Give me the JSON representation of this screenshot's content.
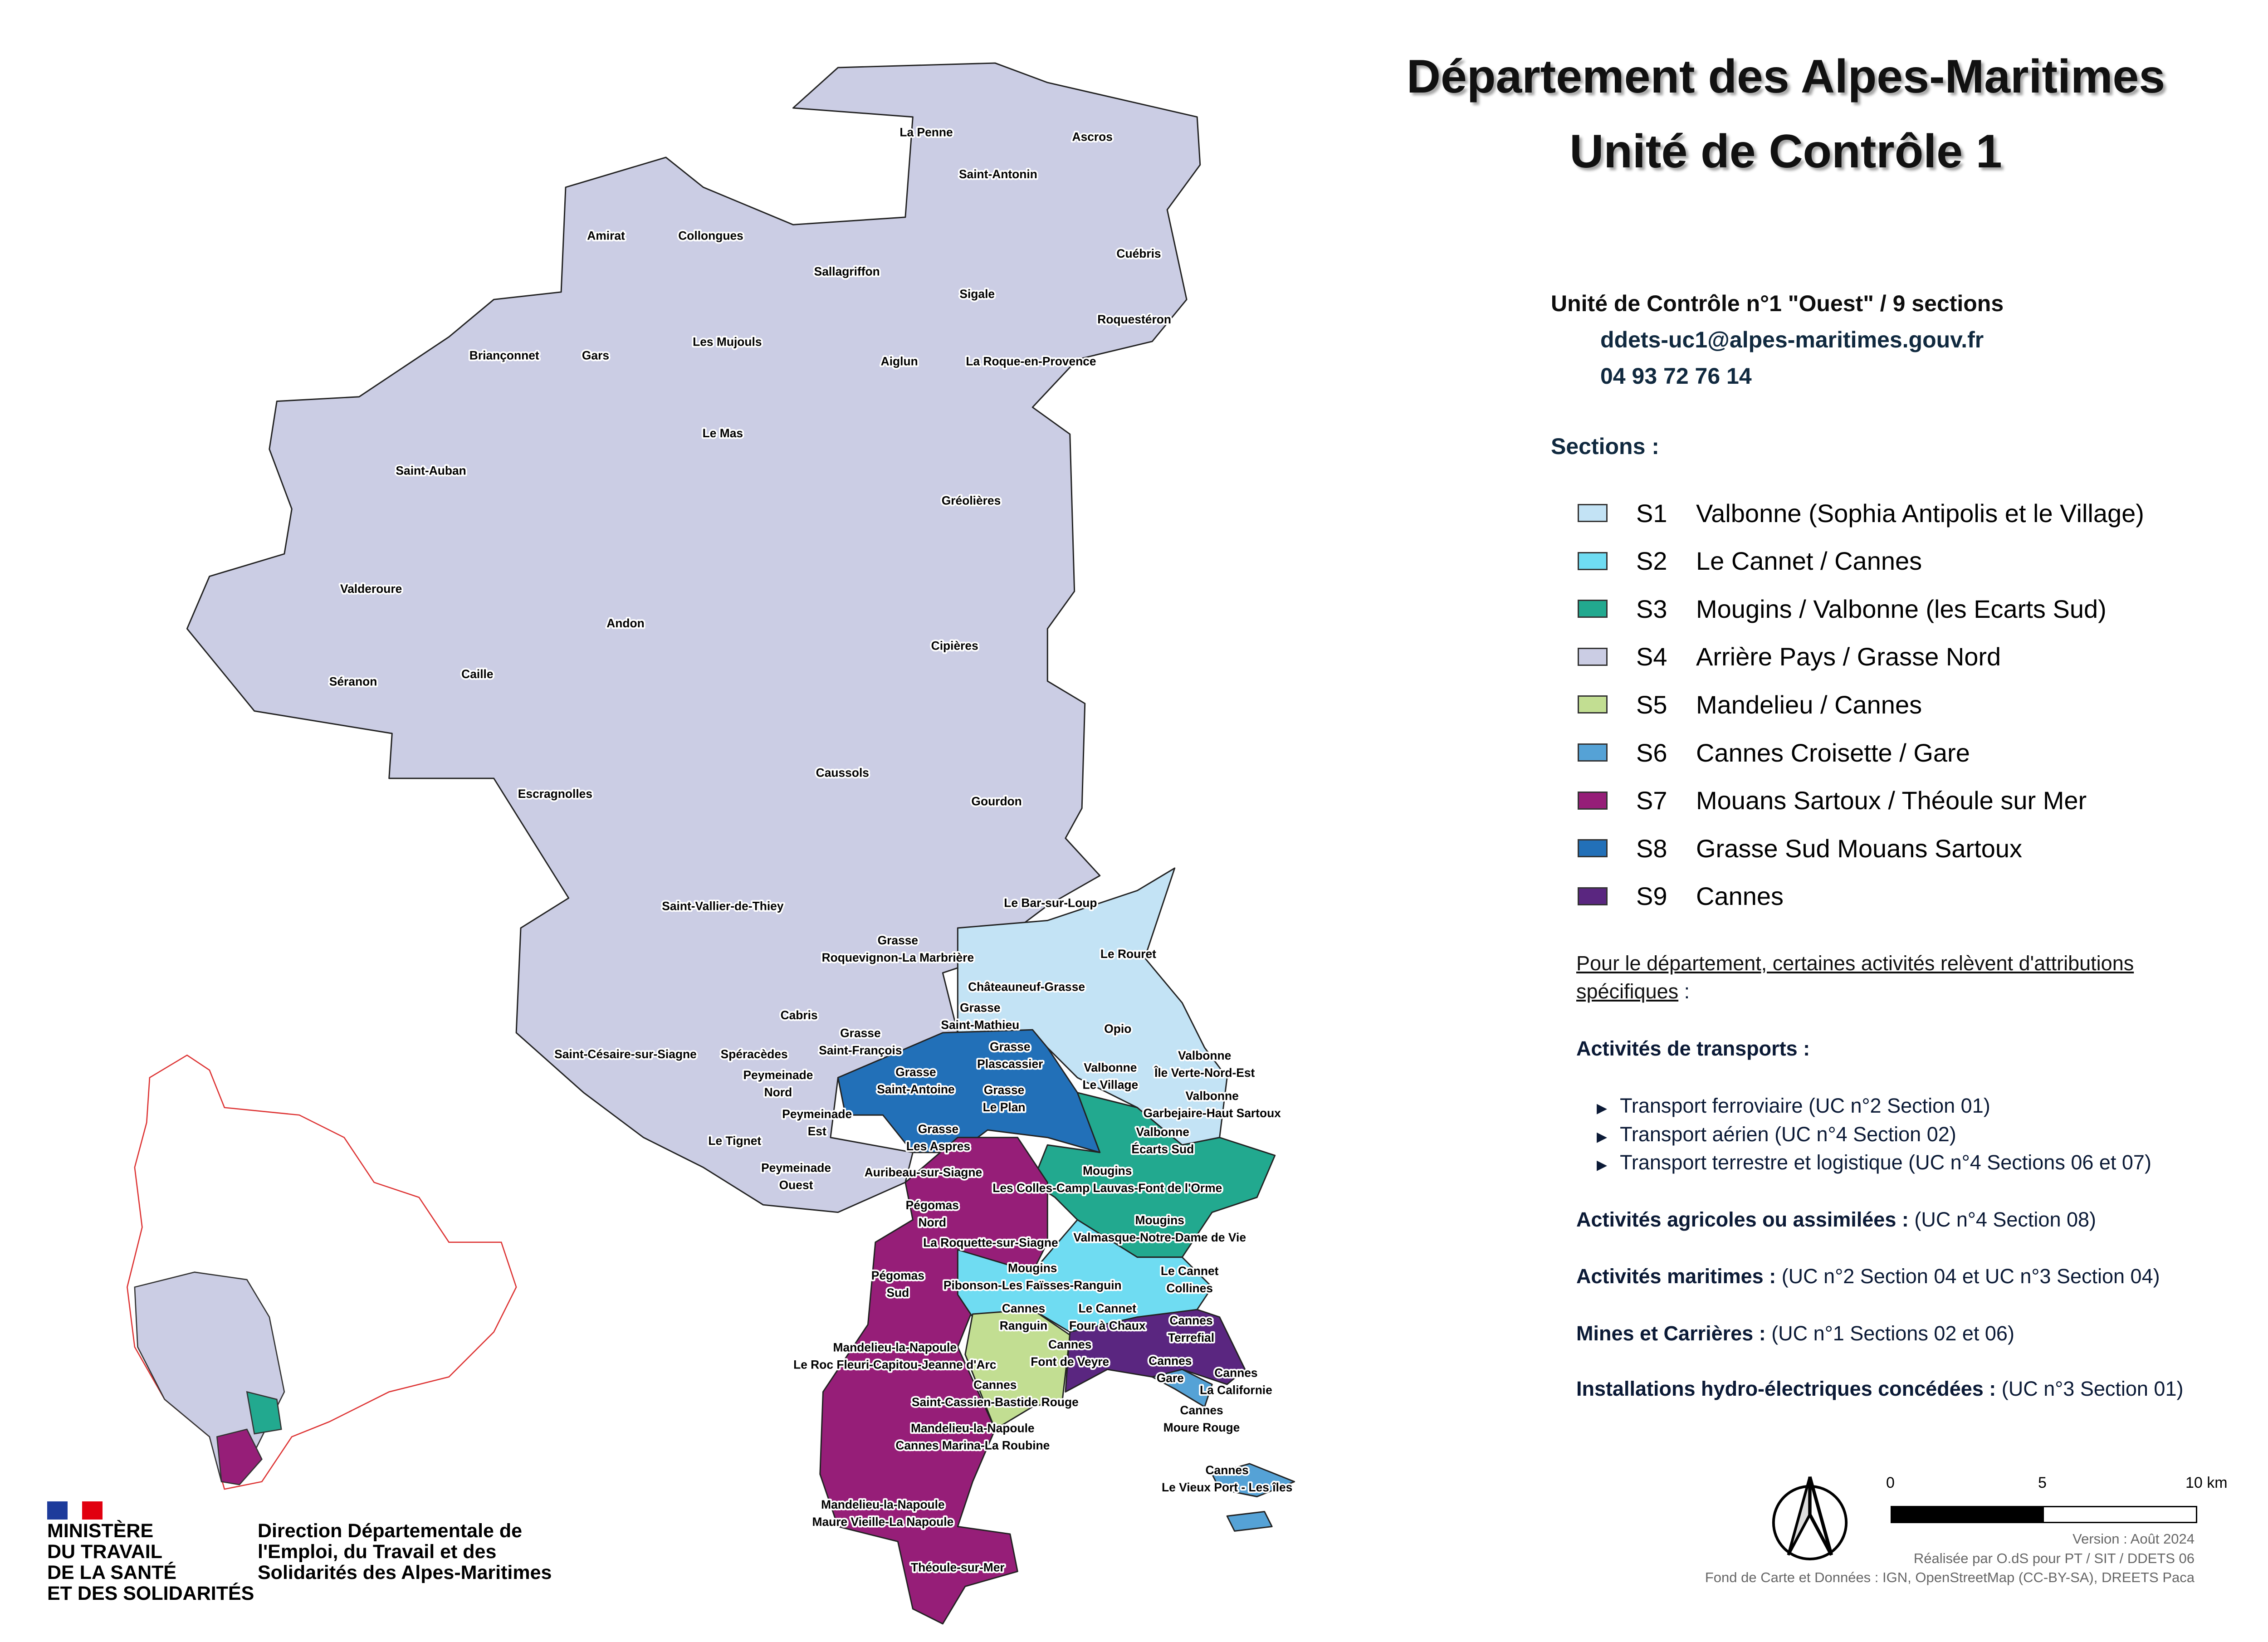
{
  "header": {
    "title_line1": "Département des Alpes-Maritimes",
    "title_line2": "Unité de Contrôle 1"
  },
  "unit": {
    "heading": "Unité de Contrôle n°1 \"Ouest\" / 9 sections",
    "email": "ddets-uc1@alpes-maritimes.gouv.fr",
    "phone": "04 93 72 76 14"
  },
  "legend": {
    "heading": "Sections :",
    "items": [
      {
        "code": "S1",
        "label": "Valbonne (Sophia Antipolis et le Village)",
        "color": "#c3e3f5"
      },
      {
        "code": "S2",
        "label": "Le Cannet / Cannes",
        "color": "#6fdcf2"
      },
      {
        "code": "S3",
        "label": "Mougins / Valbonne (les Ecarts Sud)",
        "color": "#22a98f"
      },
      {
        "code": "S4",
        "label": "Arrière Pays / Grasse Nord",
        "color": "#cbcde4"
      },
      {
        "code": "S5",
        "label": "Mandelieu / Cannes",
        "color": "#c2de92"
      },
      {
        "code": "S6",
        "label": "Cannes Croisette / Gare",
        "color": "#55a2d6"
      },
      {
        "code": "S7",
        "label": "Mouans Sartoux / Théoule sur Mer",
        "color": "#961e78"
      },
      {
        "code": "S8",
        "label": "Grasse Sud Mouans Sartoux",
        "color": "#2270b8"
      },
      {
        "code": "S9",
        "label": "Cannes",
        "color": "#5a2680"
      }
    ]
  },
  "specific": {
    "intro_line1": "Pour le département, certaines activités relèvent d'attributions",
    "intro_line2": "spécifiques",
    "intro_colon": " :",
    "transport_heading": "Activités de transports :",
    "transport_items": [
      "Transport ferroviaire (UC n°2 Section 01)",
      "Transport aérien (UC n°4 Section 02)",
      "Transport terrestre et logistique (UC n°4 Sections 06 et 07)"
    ],
    "rows": [
      {
        "label": "Activités agricoles ou assimilées :",
        "value": " (UC n°4 Section 08)"
      },
      {
        "label": "Activités maritimes :",
        "value": " (UC n°2 Section 04 et UC n°3 Section 04)"
      },
      {
        "label": "Mines et Carrières :",
        "value": " (UC n°1 Sections 02 et 06)"
      },
      {
        "label": "Installations hydro-électriques concédées :",
        "value": " (UC n°3 Section 01)"
      }
    ]
  },
  "scale_bar": {
    "ticks": [
      "0",
      "5",
      "10 km"
    ]
  },
  "north_arrow": {
    "icon": "north-arrow-icon"
  },
  "credits": {
    "version": "Version : Août 2024",
    "made_by": "Réalisée par O.dS pour PT / SIT / DDETS 06",
    "sources": "Fond de Carte et Données : IGN, OpenStreetMap (CC-BY-SA), DREETS Paca"
  },
  "logo": {
    "ministry": [
      "MINISTÈRE",
      "DU TRAVAIL",
      "DE LA SANTÉ",
      "ET DES SOLIDARITÉS"
    ],
    "direction": [
      "Direction Départementale de",
      "l'Emploi, du Travail et des",
      "Solidarités des Alpes-Maritimes"
    ]
  },
  "map": {
    "labels": [
      {
        "lines": [
          "La Penne"
        ]
      },
      {
        "lines": [
          "Ascros"
        ]
      },
      {
        "lines": [
          "Saint-Antonin"
        ]
      },
      {
        "lines": [
          "Amirat"
        ]
      },
      {
        "lines": [
          "Collongues"
        ]
      },
      {
        "lines": [
          "Cuébris"
        ]
      },
      {
        "lines": [
          "Sallagriffon"
        ]
      },
      {
        "lines": [
          "Sigale"
        ]
      },
      {
        "lines": [
          "Roquestéron"
        ]
      },
      {
        "lines": [
          "Les Mujouls"
        ]
      },
      {
        "lines": [
          "Briançonnet"
        ]
      },
      {
        "lines": [
          "Gars"
        ]
      },
      {
        "lines": [
          "Aiglun"
        ]
      },
      {
        "lines": [
          "La Roque-en-Provence"
        ]
      },
      {
        "lines": [
          "Le Mas"
        ]
      },
      {
        "lines": [
          "Saint-Auban"
        ]
      },
      {
        "lines": [
          "Gréolières"
        ]
      },
      {
        "lines": [
          "Valderoure"
        ]
      },
      {
        "lines": [
          "Andon"
        ]
      },
      {
        "lines": [
          "Cipières"
        ]
      },
      {
        "lines": [
          "Séranon"
        ]
      },
      {
        "lines": [
          "Caille"
        ]
      },
      {
        "lines": [
          "Caussols"
        ]
      },
      {
        "lines": [
          "Escragnolles"
        ]
      },
      {
        "lines": [
          "Gourdon"
        ]
      },
      {
        "lines": [
          "Saint-Vallier-de-Thiey"
        ]
      },
      {
        "lines": [
          "Le Bar-sur-Loup"
        ]
      },
      {
        "lines": [
          "Grasse",
          "Roquevignon-La Marbrière"
        ]
      },
      {
        "lines": [
          "Le Rouret"
        ]
      },
      {
        "lines": [
          "Châteauneuf-Grasse"
        ]
      },
      {
        "lines": [
          "Grasse",
          "Saint-Mathieu"
        ]
      },
      {
        "lines": [
          "Cabris"
        ]
      },
      {
        "lines": [
          "Opio"
        ]
      },
      {
        "lines": [
          "Grasse",
          "Saint-François"
        ]
      },
      {
        "lines": [
          "Spéracèdes"
        ]
      },
      {
        "lines": [
          "Saint-Césaire-sur-Siagne"
        ]
      },
      {
        "lines": [
          "Grasse",
          "Plascassier"
        ]
      },
      {
        "lines": [
          "Peymeinade",
          "Nord"
        ]
      },
      {
        "lines": [
          "Grasse",
          "Saint-Antoine"
        ]
      },
      {
        "lines": [
          "Valbonne",
          "Le Village"
        ]
      },
      {
        "lines": [
          "Valbonne",
          "Île Verte-Nord-Est"
        ]
      },
      {
        "lines": [
          "Grasse",
          "Le Plan"
        ]
      },
      {
        "lines": [
          "Valbonne",
          "Garbejaire-Haut Sartoux"
        ]
      },
      {
        "lines": [
          "Peymeinade",
          "Est"
        ]
      },
      {
        "lines": [
          "Le Tignet"
        ]
      },
      {
        "lines": [
          "Grasse",
          "Les Aspres"
        ]
      },
      {
        "lines": [
          "Valbonne",
          "Écarts Sud"
        ]
      },
      {
        "lines": [
          "Peymeinade",
          "Ouest"
        ]
      },
      {
        "lines": [
          "Auribeau-sur-Siagne"
        ]
      },
      {
        "lines": [
          "Mougins",
          "Les Colles-Camp Lauvas-Font de l'Orme"
        ]
      },
      {
        "lines": [
          "Pégomas",
          "Nord"
        ]
      },
      {
        "lines": [
          "Mougins",
          "Valmasque-Notre-Dame de Vie"
        ]
      },
      {
        "lines": [
          "La Roquette-sur-Siagne"
        ]
      },
      {
        "lines": [
          "Pégomas",
          "Sud"
        ]
      },
      {
        "lines": [
          "Mougins",
          "Pibonson-Les Faïsses-Ranguin"
        ]
      },
      {
        "lines": [
          "Le Cannet",
          "Collines"
        ]
      },
      {
        "lines": [
          "Cannes",
          "Ranguin"
        ]
      },
      {
        "lines": [
          "Le Cannet",
          "Four à Chaux"
        ]
      },
      {
        "lines": [
          "Cannes",
          "Terrefial"
        ]
      },
      {
        "lines": [
          "Cannes",
          "Font de Veyre"
        ]
      },
      {
        "lines": [
          "Mandelieu-la-Napoule",
          "Le Roc Fleuri-Capitou-Jeanne d'Arc"
        ]
      },
      {
        "lines": [
          "Cannes",
          "Gare"
        ]
      },
      {
        "lines": [
          "Cannes",
          "La Californie"
        ]
      },
      {
        "lines": [
          "Cannes",
          "Saint-Cassien-Bastide Rouge"
        ]
      },
      {
        "lines": [
          "Cannes",
          "Moure Rouge"
        ]
      },
      {
        "lines": [
          "Mandelieu-la-Napoule",
          "Cannes Marina-La Roubine"
        ]
      },
      {
        "lines": [
          "Cannes",
          "Le Vieux Port - Les îles"
        ]
      },
      {
        "lines": [
          "Mandelieu-la-Napoule",
          "Maure Vieille-La Napoule"
        ]
      },
      {
        "lines": [
          "Théoule-sur-Mer"
        ]
      }
    ]
  }
}
